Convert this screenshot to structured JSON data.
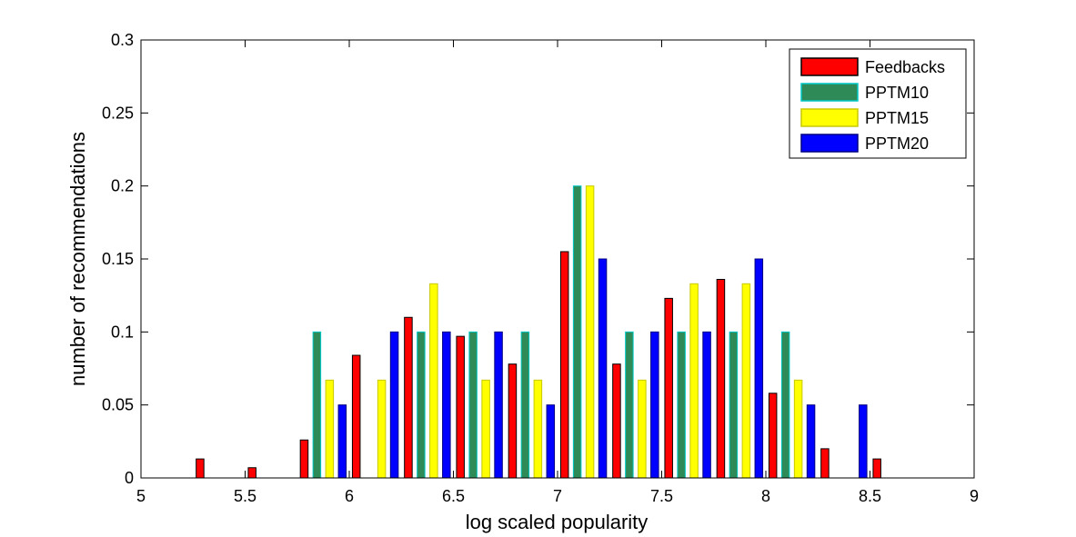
{
  "chart_data": {
    "type": "bar",
    "xlabel": "log scaled popularity",
    "ylabel": "number of recommendations",
    "xlim": [
      5,
      9
    ],
    "ylim": [
      0,
      0.3
    ],
    "xticks": [
      "5",
      "5.5",
      "6",
      "6.5",
      "7",
      "7.5",
      "8",
      "8.5",
      "9"
    ],
    "yticks": [
      "0",
      "0.05",
      "0.1",
      "0.15",
      "0.2",
      "0.25",
      "0.3"
    ],
    "x": [
      5.125,
      5.375,
      5.625,
      5.875,
      6.125,
      6.375,
      6.625,
      6.875,
      7.125,
      7.375,
      7.625,
      7.875,
      8.125,
      8.375,
      8.625,
      8.875
    ],
    "legend_position": "top-right",
    "series": [
      {
        "name": "Feedbacks",
        "color": "#ff0000",
        "values": [
          0,
          0.013,
          0.007,
          0.026,
          0.084,
          0.11,
          0.097,
          0.078,
          0.155,
          0.078,
          0.123,
          0.136,
          0.058,
          0.02,
          0.013,
          0
        ]
      },
      {
        "name": "PPTM10",
        "color": "#2e8b57",
        "values": [
          0,
          0,
          0,
          0.1,
          0,
          0.1,
          0.1,
          0.1,
          0.2,
          0.1,
          0.1,
          0.1,
          0.1,
          0,
          0,
          0
        ]
      },
      {
        "name": "PPTM15",
        "color": "#ffff00",
        "values": [
          0,
          0,
          0,
          0.067,
          0.067,
          0.133,
          0.067,
          0.067,
          0.2,
          0.067,
          0.133,
          0.133,
          0.067,
          0,
          0,
          0
        ]
      },
      {
        "name": "PPTM20",
        "color": "#0000ff",
        "values": [
          0,
          0,
          0,
          0.05,
          0.1,
          0.1,
          0.1,
          0.05,
          0.15,
          0.1,
          0.1,
          0.15,
          0.05,
          0.05,
          0,
          0
        ]
      }
    ],
    "edge_colors": [
      "#000000",
      "#00c8c8",
      "#c8c800",
      "#000080"
    ]
  }
}
